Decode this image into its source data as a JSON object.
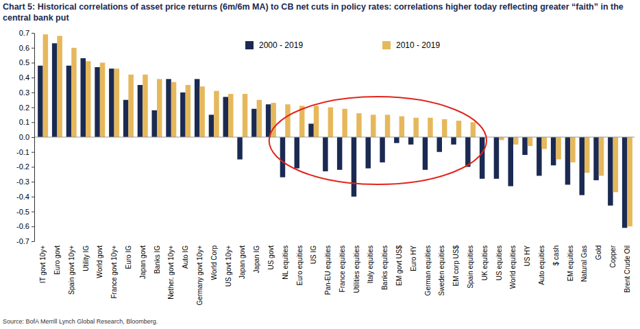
{
  "chart_data": {
    "type": "bar",
    "title": "Chart 5: Historical correlations of asset price returns (6m/6m MA) to CB net cuts in policy rates: correlations higher today reflecting greater “faith” in the central bank put",
    "source": "Source: BofA Merrill Lynch Global Research, Bloomberg.",
    "categories": [
      "IT govt 10y+",
      "Euro govt",
      "Spain govt 10y+",
      "Utility IG",
      "World govt",
      "France govt 10y+",
      "Euro IG",
      "Japan govt",
      "Banks IG",
      "Nether. govt 10y+",
      "Auto IG",
      "Germany govt 10y+",
      "World Corp",
      "US govt 10y+",
      "Japan govt",
      "Japan IG",
      "US govt",
      "NL equities",
      "Euro equities",
      "US IG",
      "Pan-EU equities",
      "France equities",
      "Utilities equities",
      "Italy equities",
      "Banks equities",
      "EM govt US$",
      "Euro HY",
      "German equities",
      "Sweden equities",
      "EM corp US$",
      "Spain equities",
      "UK equities",
      "US equities",
      "World equities",
      "US HY",
      "Auto equities",
      "$ cash",
      "EM equities",
      "Natural Gas",
      "Gold",
      "Copper",
      "Brent Crude Oil"
    ],
    "series": [
      {
        "name": "2000 - 2019",
        "color": "#1b2a52",
        "values": [
          0.48,
          0.63,
          0.48,
          0.53,
          0.47,
          0.46,
          0.25,
          0.35,
          0.18,
          0.39,
          0.3,
          0.39,
          0.15,
          0.27,
          -0.15,
          0.19,
          0.22,
          -0.27,
          -0.21,
          0.09,
          -0.23,
          -0.22,
          -0.4,
          -0.21,
          -0.17,
          -0.04,
          -0.05,
          -0.22,
          -0.1,
          -0.05,
          -0.2,
          -0.28,
          -0.28,
          -0.33,
          -0.12,
          -0.26,
          -0.19,
          -0.32,
          -0.39,
          -0.29,
          -0.46,
          -0.61
        ]
      },
      {
        "name": "2010 - 2019",
        "color": "#e6b85c",
        "values": [
          0.69,
          0.68,
          0.6,
          0.51,
          0.5,
          0.46,
          0.42,
          0.42,
          0.39,
          0.37,
          0.35,
          0.34,
          0.31,
          0.29,
          0.29,
          0.25,
          0.23,
          0.22,
          0.21,
          0.21,
          0.2,
          0.19,
          0.16,
          0.15,
          0.15,
          0.14,
          0.13,
          0.13,
          0.12,
          0.11,
          0.1,
          0.0,
          -0.02,
          -0.05,
          -0.06,
          -0.08,
          -0.15,
          -0.17,
          -0.24,
          -0.26,
          -0.37,
          -0.6
        ]
      }
    ],
    "ylim": [
      -0.7,
      0.7
    ],
    "yticks": [
      -0.7,
      -0.6,
      -0.5,
      -0.4,
      -0.3,
      -0.2,
      -0.1,
      {
        "value": 0,
        "label": "0.0"
      },
      0.1,
      0.2,
      0.3,
      0.4,
      0.5,
      0.6,
      0.7
    ],
    "grid": false,
    "legend": "top",
    "data_labels": false
  }
}
